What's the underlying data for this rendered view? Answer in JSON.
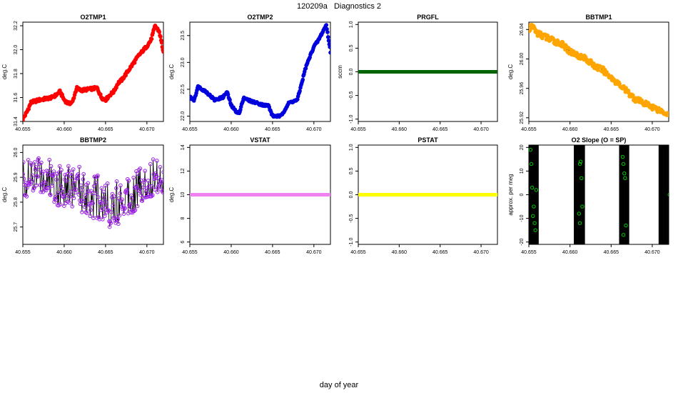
{
  "page": {
    "title": "120209a   Diagnostics 2",
    "xlabel": "day of year"
  },
  "colors": {
    "O2TMP1": "#ff0000",
    "O2TMP2": "#0000dd",
    "PRGFL": "#006400",
    "BBTMP1": "#ffa500",
    "BBTMP2": "#a020f0",
    "VSTAT": "#ee82ee",
    "PSTAT": "#ffff00",
    "SLOPE": "#00cc00"
  },
  "chart_data": [
    {
      "type": "line",
      "title": "O2TMP1",
      "ylabel": "deg.C",
      "xlim": [
        40.655,
        40.672
      ],
      "ylim": [
        31.4,
        32.23
      ],
      "xticks": [
        "40.655",
        "40.660",
        "40.665",
        "40.670"
      ],
      "yticks": [
        "31.4",
        "31.6",
        "31.8",
        "32.0",
        "32.2"
      ],
      "series": [
        {
          "x": [
            40.655,
            40.6555,
            40.656,
            40.657,
            40.6585,
            40.659,
            40.6595,
            40.66,
            40.6605,
            40.661,
            40.6615,
            40.662,
            40.663,
            40.664,
            40.6645,
            40.665,
            40.6655,
            40.666,
            40.6665,
            40.667,
            40.668,
            40.669,
            40.67,
            40.6705,
            40.671,
            40.6715,
            40.672
          ],
          "y": [
            31.42,
            31.48,
            31.56,
            31.58,
            31.6,
            31.62,
            31.65,
            31.58,
            31.55,
            31.56,
            31.68,
            31.66,
            31.67,
            31.68,
            31.6,
            31.58,
            31.62,
            31.65,
            31.72,
            31.75,
            31.85,
            31.95,
            32.03,
            32.08,
            32.2,
            32.15,
            31.98
          ]
        }
      ]
    },
    {
      "type": "line",
      "title": "O2TMP2",
      "ylabel": "deg.C",
      "xlim": [
        40.655,
        40.672
      ],
      "ylim": [
        21.9,
        23.75
      ],
      "xticks": [
        "40.655",
        "40.660",
        "40.665",
        "40.670"
      ],
      "yticks": [
        "22.0",
        "22.5",
        "23.0",
        "23.5"
      ],
      "series": [
        {
          "x": [
            40.655,
            40.6555,
            40.656,
            40.657,
            40.658,
            40.659,
            40.6595,
            40.66,
            40.6605,
            40.661,
            40.6615,
            40.662,
            40.663,
            40.664,
            40.6645,
            40.665,
            40.6655,
            40.666,
            40.667,
            40.668,
            40.669,
            40.67,
            40.6705,
            40.671,
            40.6715,
            40.672
          ],
          "y": [
            22.35,
            22.3,
            22.55,
            22.45,
            22.3,
            22.35,
            22.45,
            22.2,
            22.1,
            22.05,
            22.35,
            22.3,
            22.25,
            22.2,
            22.2,
            22.0,
            22.0,
            22.0,
            22.25,
            22.3,
            22.9,
            23.3,
            23.4,
            23.55,
            23.7,
            23.2
          ]
        }
      ]
    },
    {
      "type": "line",
      "title": "PRGFL",
      "ylabel": "sccm",
      "xlim": [
        40.655,
        40.672
      ],
      "ylim": [
        -1.05,
        1.05
      ],
      "xticks": [
        "40.655",
        "40.660",
        "40.665",
        "40.670"
      ],
      "yticks": [
        "-1.0",
        "-0.5",
        "0.0",
        "0.5",
        "1.0"
      ],
      "series": [
        {
          "x": [
            40.655,
            40.672
          ],
          "y": [
            0,
            0
          ]
        }
      ]
    },
    {
      "type": "line",
      "title": "BBTMP1",
      "ylabel": "deg.C",
      "xlim": [
        40.655,
        40.672
      ],
      "ylim": [
        25.915,
        26.05
      ],
      "xticks": [
        "40.655",
        "40.660",
        "40.665",
        "40.670"
      ],
      "yticks": [
        "25.92",
        "25.96",
        "26.00",
        "26.04"
      ],
      "series": [
        {
          "x": [
            40.655,
            40.6555,
            40.656,
            40.657,
            40.658,
            40.659,
            40.66,
            40.661,
            40.662,
            40.663,
            40.664,
            40.665,
            40.666,
            40.667,
            40.668,
            40.669,
            40.67,
            40.671,
            40.672
          ],
          "y": [
            26.04,
            26.045,
            26.035,
            26.03,
            26.025,
            26.02,
            26.01,
            26.005,
            26.0,
            25.99,
            25.985,
            25.975,
            25.965,
            25.955,
            25.945,
            25.94,
            25.935,
            25.93,
            25.925
          ]
        }
      ]
    },
    {
      "type": "line",
      "title": "BBTMP2",
      "ylabel": "deg.C",
      "xlim": [
        40.655,
        40.672
      ],
      "ylim": [
        25.63,
        26.03
      ],
      "xticks": [
        "40.655",
        "40.660",
        "40.665",
        "40.670"
      ],
      "yticks": [
        "25.7",
        "25.8",
        "25.9",
        "26.0"
      ],
      "series": [
        {
          "x": [
            40.655,
            40.656,
            40.657,
            40.658,
            40.659,
            40.66,
            40.661,
            40.662,
            40.663,
            40.664,
            40.665,
            40.666,
            40.667,
            40.668,
            40.669,
            40.67,
            40.671,
            40.672
          ],
          "y": [
            25.9,
            25.88,
            25.92,
            25.9,
            25.88,
            25.86,
            25.87,
            25.85,
            25.83,
            25.82,
            25.8,
            25.78,
            25.82,
            25.84,
            25.86,
            25.88,
            25.9,
            25.92
          ]
        }
      ]
    },
    {
      "type": "line",
      "title": "VSTAT",
      "ylabel": "deg.C",
      "xlim": [
        40.655,
        40.672
      ],
      "ylim": [
        5.8,
        14.2
      ],
      "xticks": [
        "40.655",
        "40.660",
        "40.665",
        "40.670"
      ],
      "yticks": [
        "6",
        "8",
        "10",
        "12",
        "14"
      ],
      "series": [
        {
          "x": [
            40.655,
            40.672
          ],
          "y": [
            10,
            10
          ]
        }
      ]
    },
    {
      "type": "line",
      "title": "PSTAT",
      "ylabel": "",
      "xlim": [
        40.655,
        40.672
      ],
      "ylim": [
        -1.05,
        1.05
      ],
      "xticks": [
        "40.655",
        "40.660",
        "40.665",
        "40.670"
      ],
      "yticks": [
        "-1.0",
        "-0.5",
        "0.0",
        "0.5",
        "1.0"
      ],
      "series": [
        {
          "x": [
            40.655,
            40.672
          ],
          "y": [
            0,
            0
          ]
        }
      ]
    },
    {
      "type": "scatter",
      "title": "O2 Slope (O = SP)",
      "ylabel": "approx. per meg",
      "xlim": [
        40.655,
        40.672
      ],
      "ylim": [
        -21,
        21
      ],
      "xticks": [
        "40.655",
        "40.660",
        "40.665",
        "40.670"
      ],
      "yticks": [
        "-20",
        "-10",
        "0",
        "10",
        "20"
      ],
      "bands": [
        [
          40.6547,
          40.6562
        ],
        [
          40.6605,
          40.6618
        ],
        [
          40.666,
          40.6672
        ],
        [
          40.6708,
          40.6722
        ]
      ],
      "series": [
        {
          "x": [
            40.6552,
            40.6553,
            40.6554,
            40.6556,
            40.6557,
            40.6558,
            40.6555,
            40.6559,
            40.6612,
            40.6613,
            40.6614,
            40.6611,
            40.6612,
            40.6615,
            40.6664,
            40.6665,
            40.6666,
            40.6667,
            40.6668,
            40.6665,
            40.6721
          ],
          "y": [
            19,
            13,
            3,
            -5,
            -12,
            -15,
            -9,
            2,
            13,
            14,
            7,
            -8,
            -12,
            -5,
            16,
            13,
            9,
            7,
            -13,
            -17,
            0
          ]
        }
      ]
    }
  ]
}
